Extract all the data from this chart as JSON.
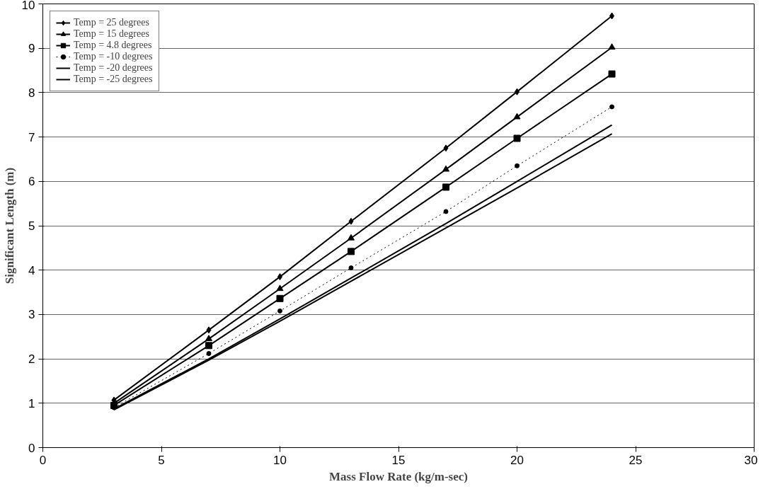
{
  "chart_data": {
    "type": "line",
    "xlabel": "Mass Flow Rate (kg/m-sec)",
    "ylabel": "Significant Length (m)",
    "x": [
      3,
      7,
      10,
      13,
      17,
      20,
      24
    ],
    "xlim": [
      0,
      30
    ],
    "xticks": [
      0,
      5,
      10,
      15,
      20,
      25,
      30
    ],
    "ylim": [
      0,
      10
    ],
    "yticks": [
      0,
      1,
      2,
      3,
      4,
      5,
      6,
      7,
      8,
      9,
      10
    ],
    "grid": "y",
    "legend": "top left",
    "line_style": "solid",
    "series": [
      {
        "name": "Temp = 25 degrees",
        "color": "#000000",
        "marker": "diamond",
        "values": [
          1.07,
          2.65,
          3.85,
          5.1,
          6.75,
          8.02,
          9.73
        ]
      },
      {
        "name": "Temp = 15 degrees",
        "color": "#000000",
        "marker": "triangle",
        "values": [
          1.0,
          2.45,
          3.58,
          4.72,
          6.27,
          7.45,
          9.02
        ]
      },
      {
        "name": "Temp = 4.8 degrees",
        "color": "#000000",
        "marker": "square",
        "values": [
          0.95,
          2.3,
          3.36,
          4.42,
          5.87,
          6.97,
          8.42
        ]
      },
      {
        "name": "Temp = -10 degrees",
        "color": "#000000",
        "marker": "circle",
        "line_style": "dotted",
        "values": [
          0.9,
          2.12,
          3.08,
          4.05,
          5.32,
          6.35,
          7.68
        ]
      },
      {
        "name": "Temp = -20 degrees",
        "color": "#000000",
        "marker": "none",
        "values": [
          0.87,
          2.0,
          2.9,
          3.82,
          5.05,
          6.0,
          7.27
        ]
      },
      {
        "name": "Temp = -25 degrees",
        "color": "#000000",
        "marker": "none",
        "values": [
          0.85,
          1.97,
          2.85,
          3.75,
          4.95,
          5.85,
          7.07
        ]
      }
    ]
  }
}
